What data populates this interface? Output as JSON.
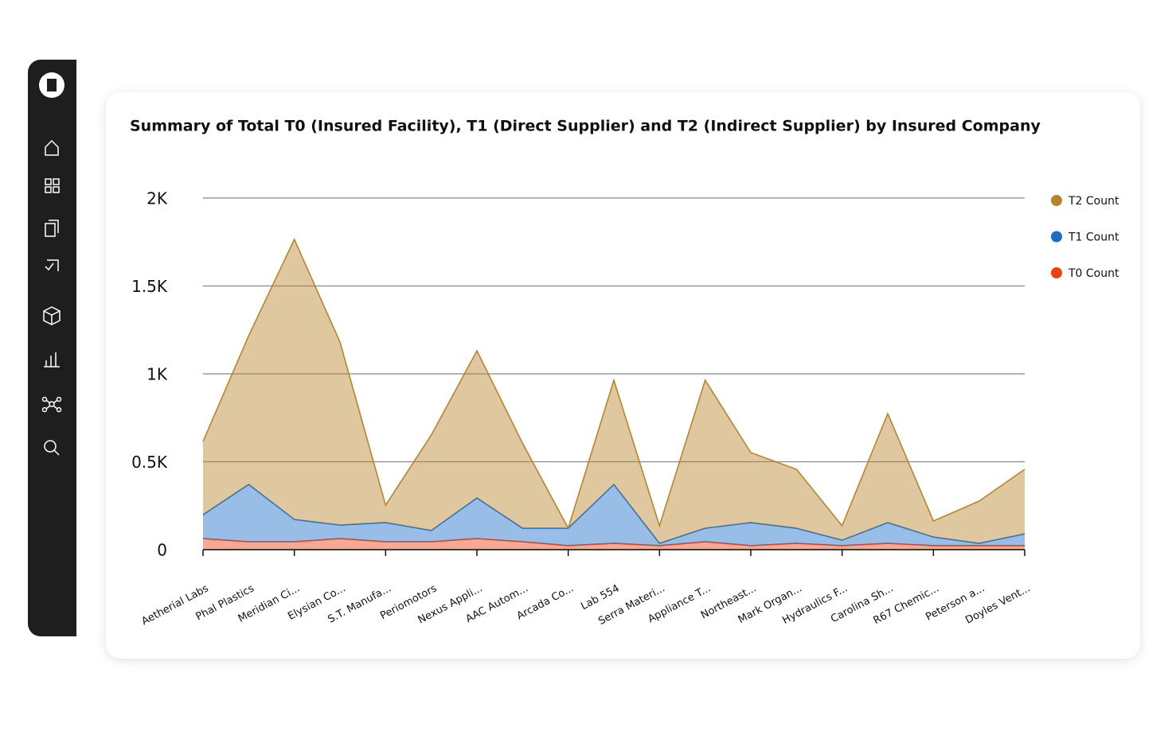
{
  "chart_data": {
    "type": "stacked_area",
    "title": "Summary of Total T0 (Insured Facility), T1 (Direct Supplier) and T2 (Indirect Supplier) by Insured Company",
    "categories": [
      "Aetherial Labs",
      "Phal Plastics",
      "Meridian Ci...",
      "Elysian Co...",
      "S.T. Manufa...",
      "Periomotors",
      "Nexus Appli...",
      "AAC Autom...",
      "Arcada Co...",
      "Lab 554",
      "Serra Materi...",
      "Appliance T...",
      "Northeast...",
      "Mark Organ...",
      "Hydraulics F...",
      "Carolina Sh...",
      "R67 Chemic...",
      "Peterson a...",
      "Doyles Vent..."
    ],
    "series": [
      {
        "name": "T2 Count",
        "color": "#b8842b",
        "values": [
          416,
          846,
          1593,
          1041,
          99,
          543,
          837,
          483,
          0,
          593,
          100,
          842,
          398,
          335,
          82,
          620,
          91,
          240,
          367
        ]
      },
      {
        "name": "T1 Count",
        "color": "#1a6dc8",
        "values": [
          136,
          326,
          127,
          77,
          109,
          64,
          231,
          77,
          99,
          335,
          13,
          77,
          131,
          86,
          31,
          118,
          49,
          13,
          67
        ]
      },
      {
        "name": "T0 Count",
        "color": "#ec4212",
        "values": [
          63,
          45,
          45,
          63,
          45,
          45,
          63,
          45,
          23,
          36,
          23,
          45,
          23,
          36,
          23,
          36,
          23,
          23,
          23
        ]
      }
    ],
    "ylim": [
      0,
      2000
    ],
    "yticks": [
      0,
      {
        "value": 500,
        "label": "0.5K"
      },
      {
        "value": 1000,
        "label": "1K"
      },
      {
        "value": 1500,
        "label": "1.5K"
      },
      {
        "value": 2000,
        "label": "2K"
      }
    ],
    "grid": true,
    "legend": "right"
  }
}
